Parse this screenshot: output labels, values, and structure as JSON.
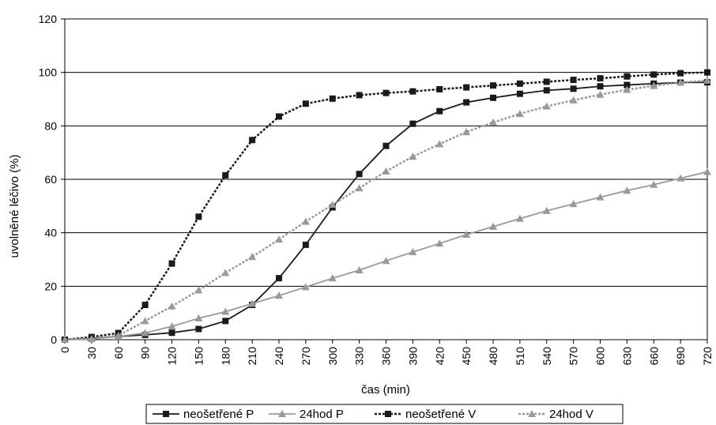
{
  "chart_data": {
    "type": "line",
    "xlabel": "čas (min)",
    "ylabel": "uvolněné léčivo (%)",
    "xlim": [
      0,
      720
    ],
    "ylim": [
      0,
      120
    ],
    "x_ticks": [
      0,
      30,
      60,
      90,
      120,
      150,
      180,
      210,
      240,
      270,
      300,
      330,
      360,
      390,
      420,
      450,
      480,
      510,
      540,
      570,
      600,
      630,
      660,
      690,
      720
    ],
    "y_ticks": [
      0,
      20,
      40,
      60,
      80,
      100,
      120
    ],
    "grid": "horizontal",
    "legend_position": "bottom",
    "x": [
      0,
      30,
      60,
      90,
      120,
      150,
      180,
      210,
      240,
      270,
      300,
      330,
      360,
      390,
      420,
      450,
      480,
      510,
      540,
      570,
      600,
      630,
      660,
      690,
      720
    ],
    "series": [
      {
        "name": "neošetřené P",
        "color": "#1a1a1a",
        "style": "solid",
        "marker": "square",
        "values": [
          0,
          0.5,
          1.2,
          1.8,
          2.6,
          4.0,
          7.0,
          13.0,
          23.0,
          35.5,
          49.5,
          62.0,
          72.5,
          80.8,
          85.5,
          88.8,
          90.5,
          92.0,
          93.3,
          93.9,
          94.8,
          95.3,
          95.8,
          96.2,
          96.3
        ]
      },
      {
        "name": "24hod P",
        "color": "#999999",
        "style": "solid",
        "marker": "triangle",
        "values": [
          0,
          0.3,
          1.2,
          2.5,
          5.0,
          8.0,
          10.5,
          13.5,
          16.5,
          19.7,
          23.0,
          26.0,
          29.5,
          32.8,
          36.0,
          39.3,
          42.3,
          45.3,
          48.2,
          50.8,
          53.3,
          55.8,
          58.0,
          60.4,
          62.8
        ]
      },
      {
        "name": "neošetřené V",
        "color": "#1a1a1a",
        "style": "dotted",
        "marker": "square",
        "values": [
          0,
          1.0,
          2.5,
          13.0,
          28.5,
          46.0,
          61.5,
          74.7,
          83.5,
          88.3,
          90.2,
          91.5,
          92.3,
          92.9,
          93.7,
          94.4,
          95.1,
          95.8,
          96.5,
          97.2,
          97.8,
          98.5,
          99.2,
          99.7,
          100.0
        ]
      },
      {
        "name": "24hod V",
        "color": "#999999",
        "style": "dotted",
        "marker": "triangle",
        "values": [
          0,
          0.3,
          1.5,
          7.0,
          12.5,
          18.5,
          25.0,
          31.0,
          37.5,
          44.2,
          50.5,
          56.7,
          63.0,
          68.5,
          73.2,
          77.7,
          81.3,
          84.5,
          87.3,
          89.6,
          91.7,
          93.5,
          95.0,
          96.2,
          97.0
        ]
      }
    ]
  }
}
